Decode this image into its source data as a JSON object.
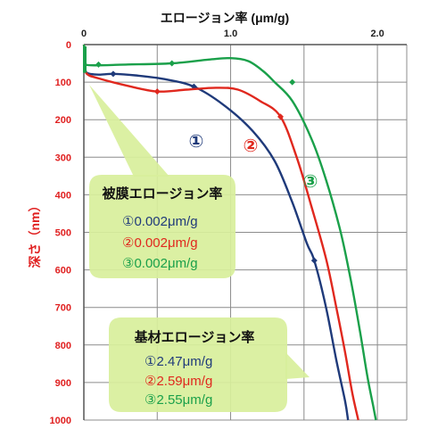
{
  "chart_data": {
    "type": "line",
    "xlabel": "エロージョン率 (μm/g)",
    "ylabel": "深さ（nm）",
    "x_ticks": [
      "0",
      "1.0",
      "2.0"
    ],
    "y_ticks": [
      "0",
      "100",
      "200",
      "300",
      "400",
      "500",
      "600",
      "700",
      "800",
      "900",
      "1000"
    ],
    "xlim": [
      0,
      2.2
    ],
    "ylim": [
      0,
      1000
    ],
    "y_inverted": true,
    "grid": true,
    "series": [
      {
        "name": "①",
        "color": "#1f3a7a",
        "points": [
          [
            0,
            0
          ],
          [
            0.01,
            25
          ],
          [
            0.01,
            55
          ],
          [
            0.02,
            75
          ],
          [
            0.1,
            80
          ],
          [
            0.2,
            78
          ],
          [
            0.35,
            82
          ],
          [
            0.55,
            92
          ],
          [
            0.75,
            112
          ],
          [
            0.95,
            160
          ],
          [
            1.15,
            230
          ],
          [
            1.3,
            310
          ],
          [
            1.42,
            420
          ],
          [
            1.52,
            530
          ],
          [
            1.57,
            575
          ],
          [
            1.65,
            700
          ],
          [
            1.72,
            840
          ],
          [
            1.78,
            950
          ],
          [
            1.8,
            1000
          ]
        ],
        "markers": [
          [
            0.2,
            78
          ],
          [
            0.75,
            112
          ],
          [
            1.57,
            575
          ]
        ]
      },
      {
        "name": "②",
        "color": "#e0281e",
        "points": [
          [
            0,
            0
          ],
          [
            0.01,
            25
          ],
          [
            0.01,
            55
          ],
          [
            0.02,
            78
          ],
          [
            0.1,
            90
          ],
          [
            0.3,
            110
          ],
          [
            0.5,
            125
          ],
          [
            0.7,
            120
          ],
          [
            0.9,
            115
          ],
          [
            1.05,
            120
          ],
          [
            1.2,
            150
          ],
          [
            1.34,
            192
          ],
          [
            1.45,
            300
          ],
          [
            1.55,
            430
          ],
          [
            1.65,
            570
          ],
          [
            1.72,
            700
          ],
          [
            1.78,
            820
          ],
          [
            1.83,
            930
          ],
          [
            1.87,
            1000
          ]
        ],
        "markers": [
          [
            0.5,
            125
          ],
          [
            1.34,
            192
          ]
        ]
      },
      {
        "name": "③",
        "color": "#1aa04a",
        "points": [
          [
            0,
            0
          ],
          [
            0.01,
            20
          ],
          [
            0.01,
            48
          ],
          [
            0.05,
            55
          ],
          [
            0.3,
            53
          ],
          [
            0.6,
            50
          ],
          [
            0.85,
            40
          ],
          [
            1.0,
            36
          ],
          [
            1.12,
            44
          ],
          [
            1.22,
            70
          ],
          [
            1.3,
            100
          ],
          [
            1.42,
            150
          ],
          [
            1.55,
            250
          ],
          [
            1.65,
            360
          ],
          [
            1.75,
            500
          ],
          [
            1.82,
            630
          ],
          [
            1.88,
            760
          ],
          [
            1.93,
            880
          ],
          [
            1.97,
            960
          ],
          [
            1.99,
            1000
          ]
        ],
        "markers": [
          [
            0.1,
            53
          ],
          [
            0.6,
            50
          ],
          [
            1.42,
            100
          ]
        ]
      }
    ],
    "annotations": {
      "film": {
        "title": "被膜エロージョン率",
        "lines": [
          {
            "text": "①0.002μm/g",
            "color": "#1f3a7a"
          },
          {
            "text": "②0.002μm/g",
            "color": "#e0281e"
          },
          {
            "text": "③0.002μm/g",
            "color": "#1aa04a"
          }
        ]
      },
      "substrate": {
        "title": "基材エロージョン率",
        "lines": [
          {
            "text": "①2.47μm/g",
            "color": "#1f3a7a"
          },
          {
            "text": "②2.59μm/g",
            "color": "#e0281e"
          },
          {
            "text": "③2.55μm/g",
            "color": "#1aa04a"
          }
        ]
      },
      "curve_labels": [
        "①",
        "②",
        "③"
      ]
    }
  }
}
